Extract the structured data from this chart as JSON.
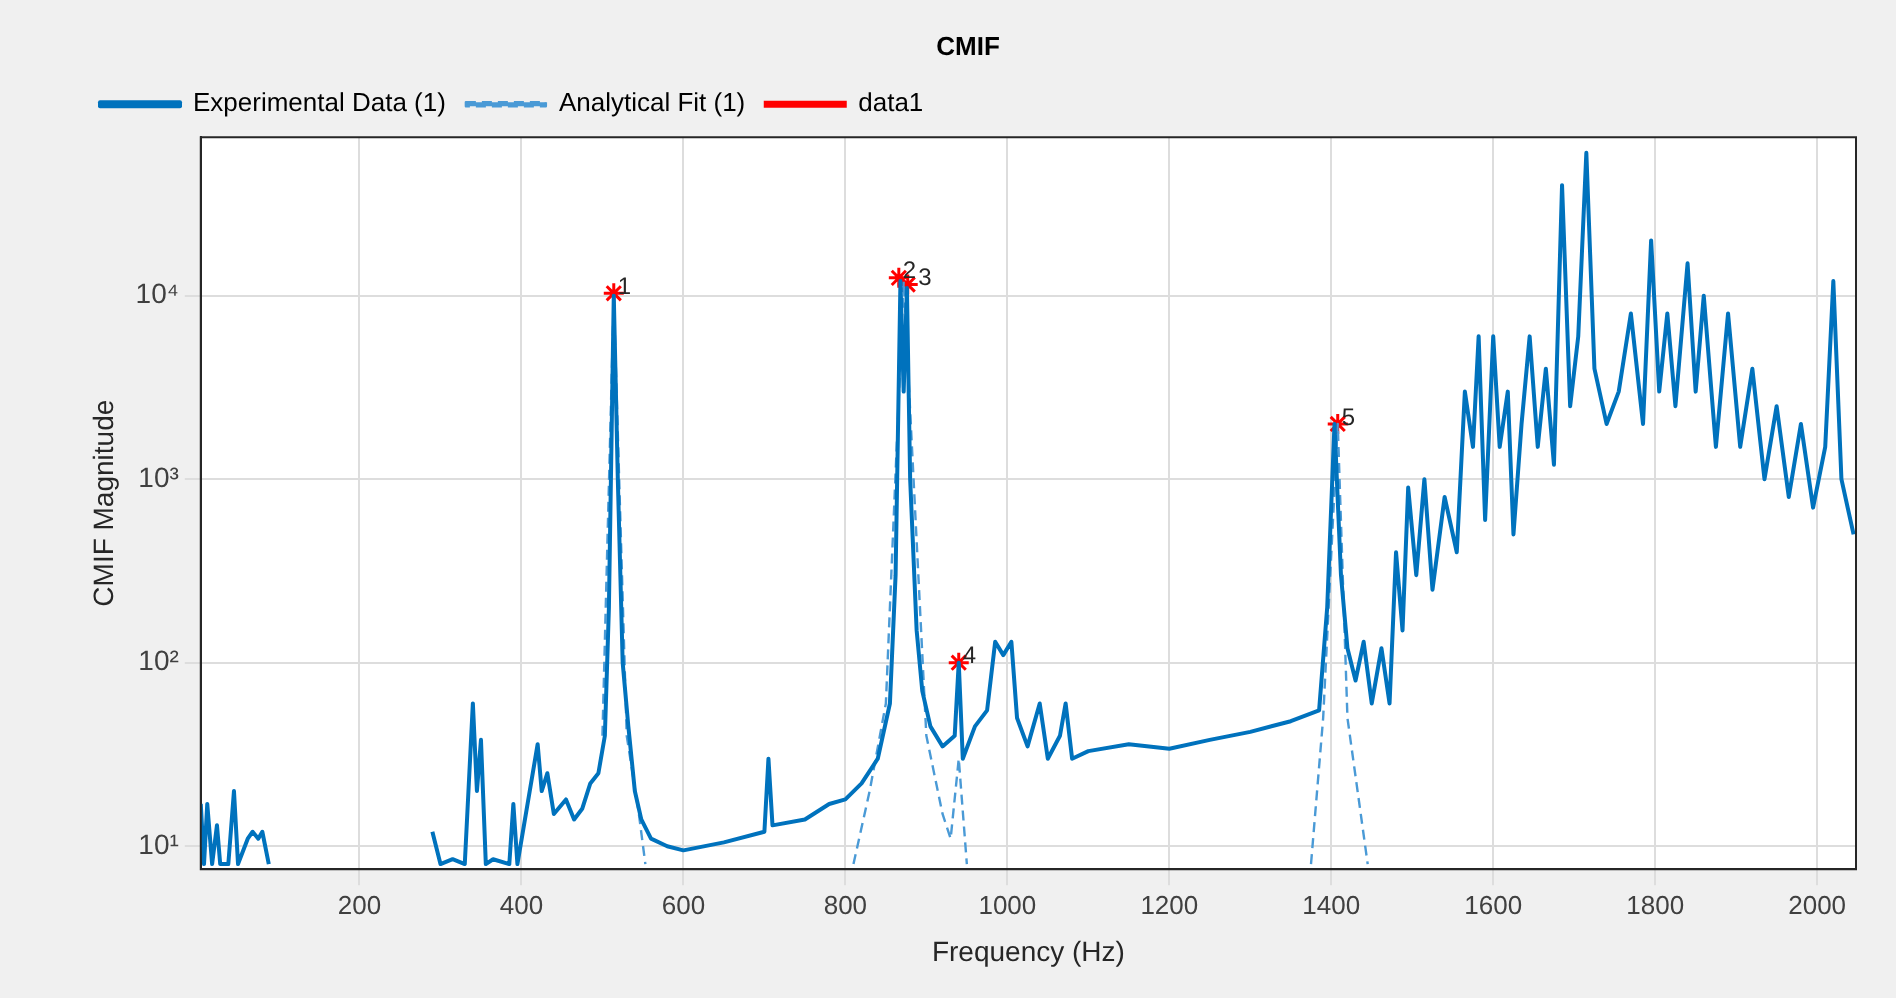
{
  "chart_data": {
    "type": "line",
    "title": "CMIF",
    "xlabel": "Frequency (Hz)",
    "ylabel": "CMIF Magnitude",
    "log": "y",
    "grid": true,
    "legend": "top left",
    "xlim": [
      4,
      2048
    ],
    "xticks": [
      200,
      400,
      600,
      800,
      1000,
      1200,
      1400,
      1600,
      1800,
      2000
    ],
    "ylim": [
      7.5,
      73000
    ],
    "yticks": [
      {
        "value": 10,
        "label": "10¹"
      },
      {
        "value": 100,
        "label": "10²"
      },
      {
        "value": 1000,
        "label": "10³"
      },
      {
        "value": 10000,
        "label": "10⁴"
      }
    ],
    "series": [
      {
        "name": "Experimental Data (1)",
        "type": "line",
        "color": "#0072bd",
        "line_style": "solid",
        "marker": "none",
        "x": [
          4,
          8,
          12,
          18,
          24,
          28,
          38,
          45,
          50,
          62,
          68,
          75,
          80,
          88,
          95,
          290,
          300,
          315,
          330,
          340,
          345,
          350,
          356,
          365,
          385,
          390,
          395,
          420,
          425,
          432,
          440,
          455,
          465,
          475,
          485,
          495,
          503,
          508,
          514,
          519,
          525,
          532,
          540,
          548,
          560,
          580,
          600,
          650,
          700,
          705,
          710,
          750,
          780,
          800,
          820,
          840,
          855,
          862,
          868,
          872,
          876,
          880,
          888,
          895,
          905,
          920,
          935,
          940,
          945,
          960,
          975,
          985,
          995,
          1005,
          1012,
          1025,
          1040,
          1050,
          1065,
          1072,
          1080,
          1100,
          1150,
          1200,
          1250,
          1300,
          1350,
          1385,
          1395,
          1404,
          1412,
          1420,
          1430,
          1440,
          1450,
          1462,
          1472,
          1480,
          1488,
          1495,
          1505,
          1515,
          1525,
          1540,
          1555,
          1565,
          1575,
          1582,
          1590,
          1600,
          1608,
          1618,
          1625,
          1635,
          1645,
          1655,
          1665,
          1675,
          1685,
          1695,
          1705,
          1715,
          1725,
          1740,
          1755,
          1770,
          1785,
          1795,
          1805,
          1815,
          1825,
          1840,
          1850,
          1860,
          1875,
          1890,
          1905,
          1920,
          1935,
          1950,
          1965,
          1980,
          1995,
          2010,
          2020,
          2030,
          2045
        ],
        "values": [
          17,
          8,
          17,
          8,
          13,
          8,
          8,
          20,
          8,
          11,
          12,
          11,
          12,
          8,
          null,
          12,
          8,
          8.5,
          8,
          60,
          20,
          38,
          8,
          8.5,
          8,
          17,
          8,
          36,
          20,
          25,
          15,
          18,
          14,
          16,
          22,
          25,
          40,
          200,
          10000,
          1000,
          100,
          45,
          20,
          14,
          11,
          10,
          9.5,
          10.5,
          12,
          30,
          13,
          14,
          17,
          18,
          22,
          30,
          60,
          300,
          12000,
          3000,
          11000,
          1000,
          150,
          70,
          45,
          35,
          40,
          100,
          30,
          45,
          55,
          130,
          110,
          130,
          50,
          35,
          60,
          30,
          40,
          60,
          30,
          33,
          36,
          34,
          38,
          42,
          48,
          55,
          200,
          2000,
          300,
          120,
          80,
          130,
          60,
          120,
          60,
          400,
          150,
          900,
          300,
          1000,
          250,
          800,
          400,
          3000,
          1500,
          6000,
          600,
          6000,
          1500,
          3000,
          500,
          2000,
          6000,
          1500,
          4000,
          1200,
          40000,
          2500,
          6000,
          60000,
          4000,
          2000,
          3000,
          8000,
          2000,
          20000,
          3000,
          8000,
          2500,
          15000,
          3000,
          10000,
          1500,
          8000,
          1500,
          4000,
          1000,
          2500,
          800,
          2000,
          700,
          1500,
          12000,
          1000,
          500
        ]
      },
      {
        "name": "Analytical Fit (1)",
        "type": "line",
        "color": "#4a9ad6",
        "line_style": "dashed",
        "marker": "none",
        "x": [
          500,
          514,
          530,
          545,
          553,
          700,
          810,
          830,
          850,
          872,
          900,
          920,
          930,
          940,
          950,
          1200,
          1375,
          1390,
          1408,
          1420,
          1445
        ],
        "values": [
          40,
          10000,
          40,
          15,
          8,
          null,
          8,
          20,
          60,
          12000,
          40,
          15,
          11,
          30,
          8,
          null,
          8,
          50,
          2000,
          50,
          8
        ]
      },
      {
        "name": "data1",
        "type": "scatter",
        "color": "#ff0000",
        "marker": "cross",
        "x": [
          514,
          866,
          877,
          940,
          1408
        ],
        "values": [
          10300,
          12500,
          11500,
          100,
          2000
        ]
      }
    ],
    "annotations": [
      {
        "text": "1",
        "x": 514,
        "y": 10300
      },
      {
        "text": "2",
        "x": 866,
        "y": 12500
      },
      {
        "text": "3",
        "x": 877,
        "y": 11500
      },
      {
        "text": "4",
        "x": 940,
        "y": 100
      },
      {
        "text": "5",
        "x": 1408,
        "y": 2000
      }
    ]
  }
}
